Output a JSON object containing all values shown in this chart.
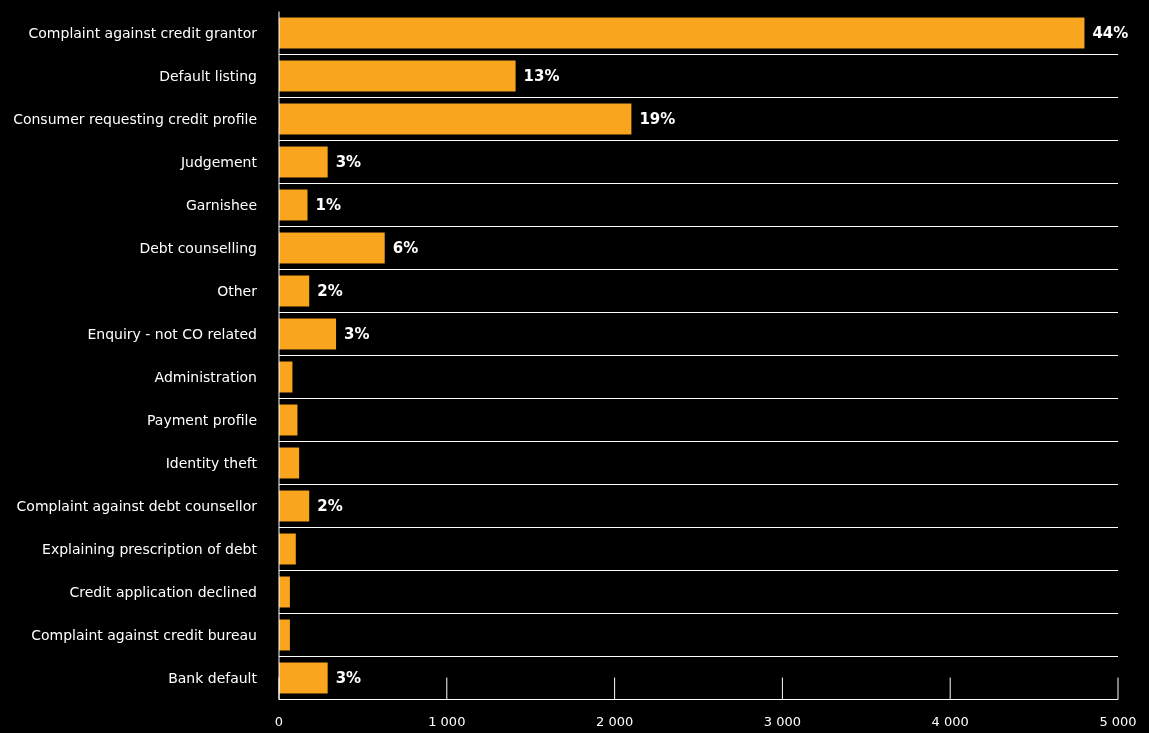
{
  "chart_data": {
    "type": "bar",
    "orientation": "horizontal",
    "categories": [
      "Complaint against credit grantor",
      "Default listing",
      "Consumer requesting credit profile",
      "Judgement",
      "Garnishee",
      "Debt counselling",
      "Other",
      "Enquiry - not CO related",
      "Administration",
      "Payment profile",
      "Identity theft",
      "Complaint against debt counsellor",
      "Explaining prescription of debt",
      "Credit application declined",
      "Complaint against credit bureau",
      "Bank default"
    ],
    "values": [
      4800,
      1410,
      2100,
      290,
      170,
      630,
      180,
      340,
      80,
      110,
      120,
      180,
      100,
      65,
      65,
      290
    ],
    "annotations": [
      {
        "text": "44%",
        "x": 4800,
        "y": "Complaint against credit grantor"
      },
      {
        "text": "13%",
        "x": 1410,
        "y": "Default listing"
      },
      {
        "text": "19%",
        "x": 2100,
        "y": "Consumer requesting credit profile"
      },
      {
        "text": "3%",
        "x": 290,
        "y": "Judgement"
      },
      {
        "text": "1%",
        "x": 170,
        "y": "Garnishee"
      },
      {
        "text": "6%",
        "x": 630,
        "y": "Debt counselling"
      },
      {
        "text": "2%",
        "x": 180,
        "y": "Other"
      },
      {
        "text": "3%",
        "x": 340,
        "y": "Enquiry - not CO related"
      },
      {
        "text": "2%",
        "x": 180,
        "y": "Complaint against debt counsellor"
      },
      {
        "text": "3%",
        "x": 290,
        "y": "Bank default"
      }
    ],
    "color": "#f9a51e",
    "xlim": [
      0,
      5000
    ],
    "xticks": [
      0,
      {
        "value": 1000,
        "label": "1 000"
      },
      {
        "value": 2000,
        "label": "2 000"
      },
      {
        "value": 3000,
        "label": "3 000"
      },
      {
        "value": 4000,
        "label": "4 000"
      },
      {
        "value": 5000,
        "label": "5 000"
      }
    ],
    "grid": "y"
  }
}
